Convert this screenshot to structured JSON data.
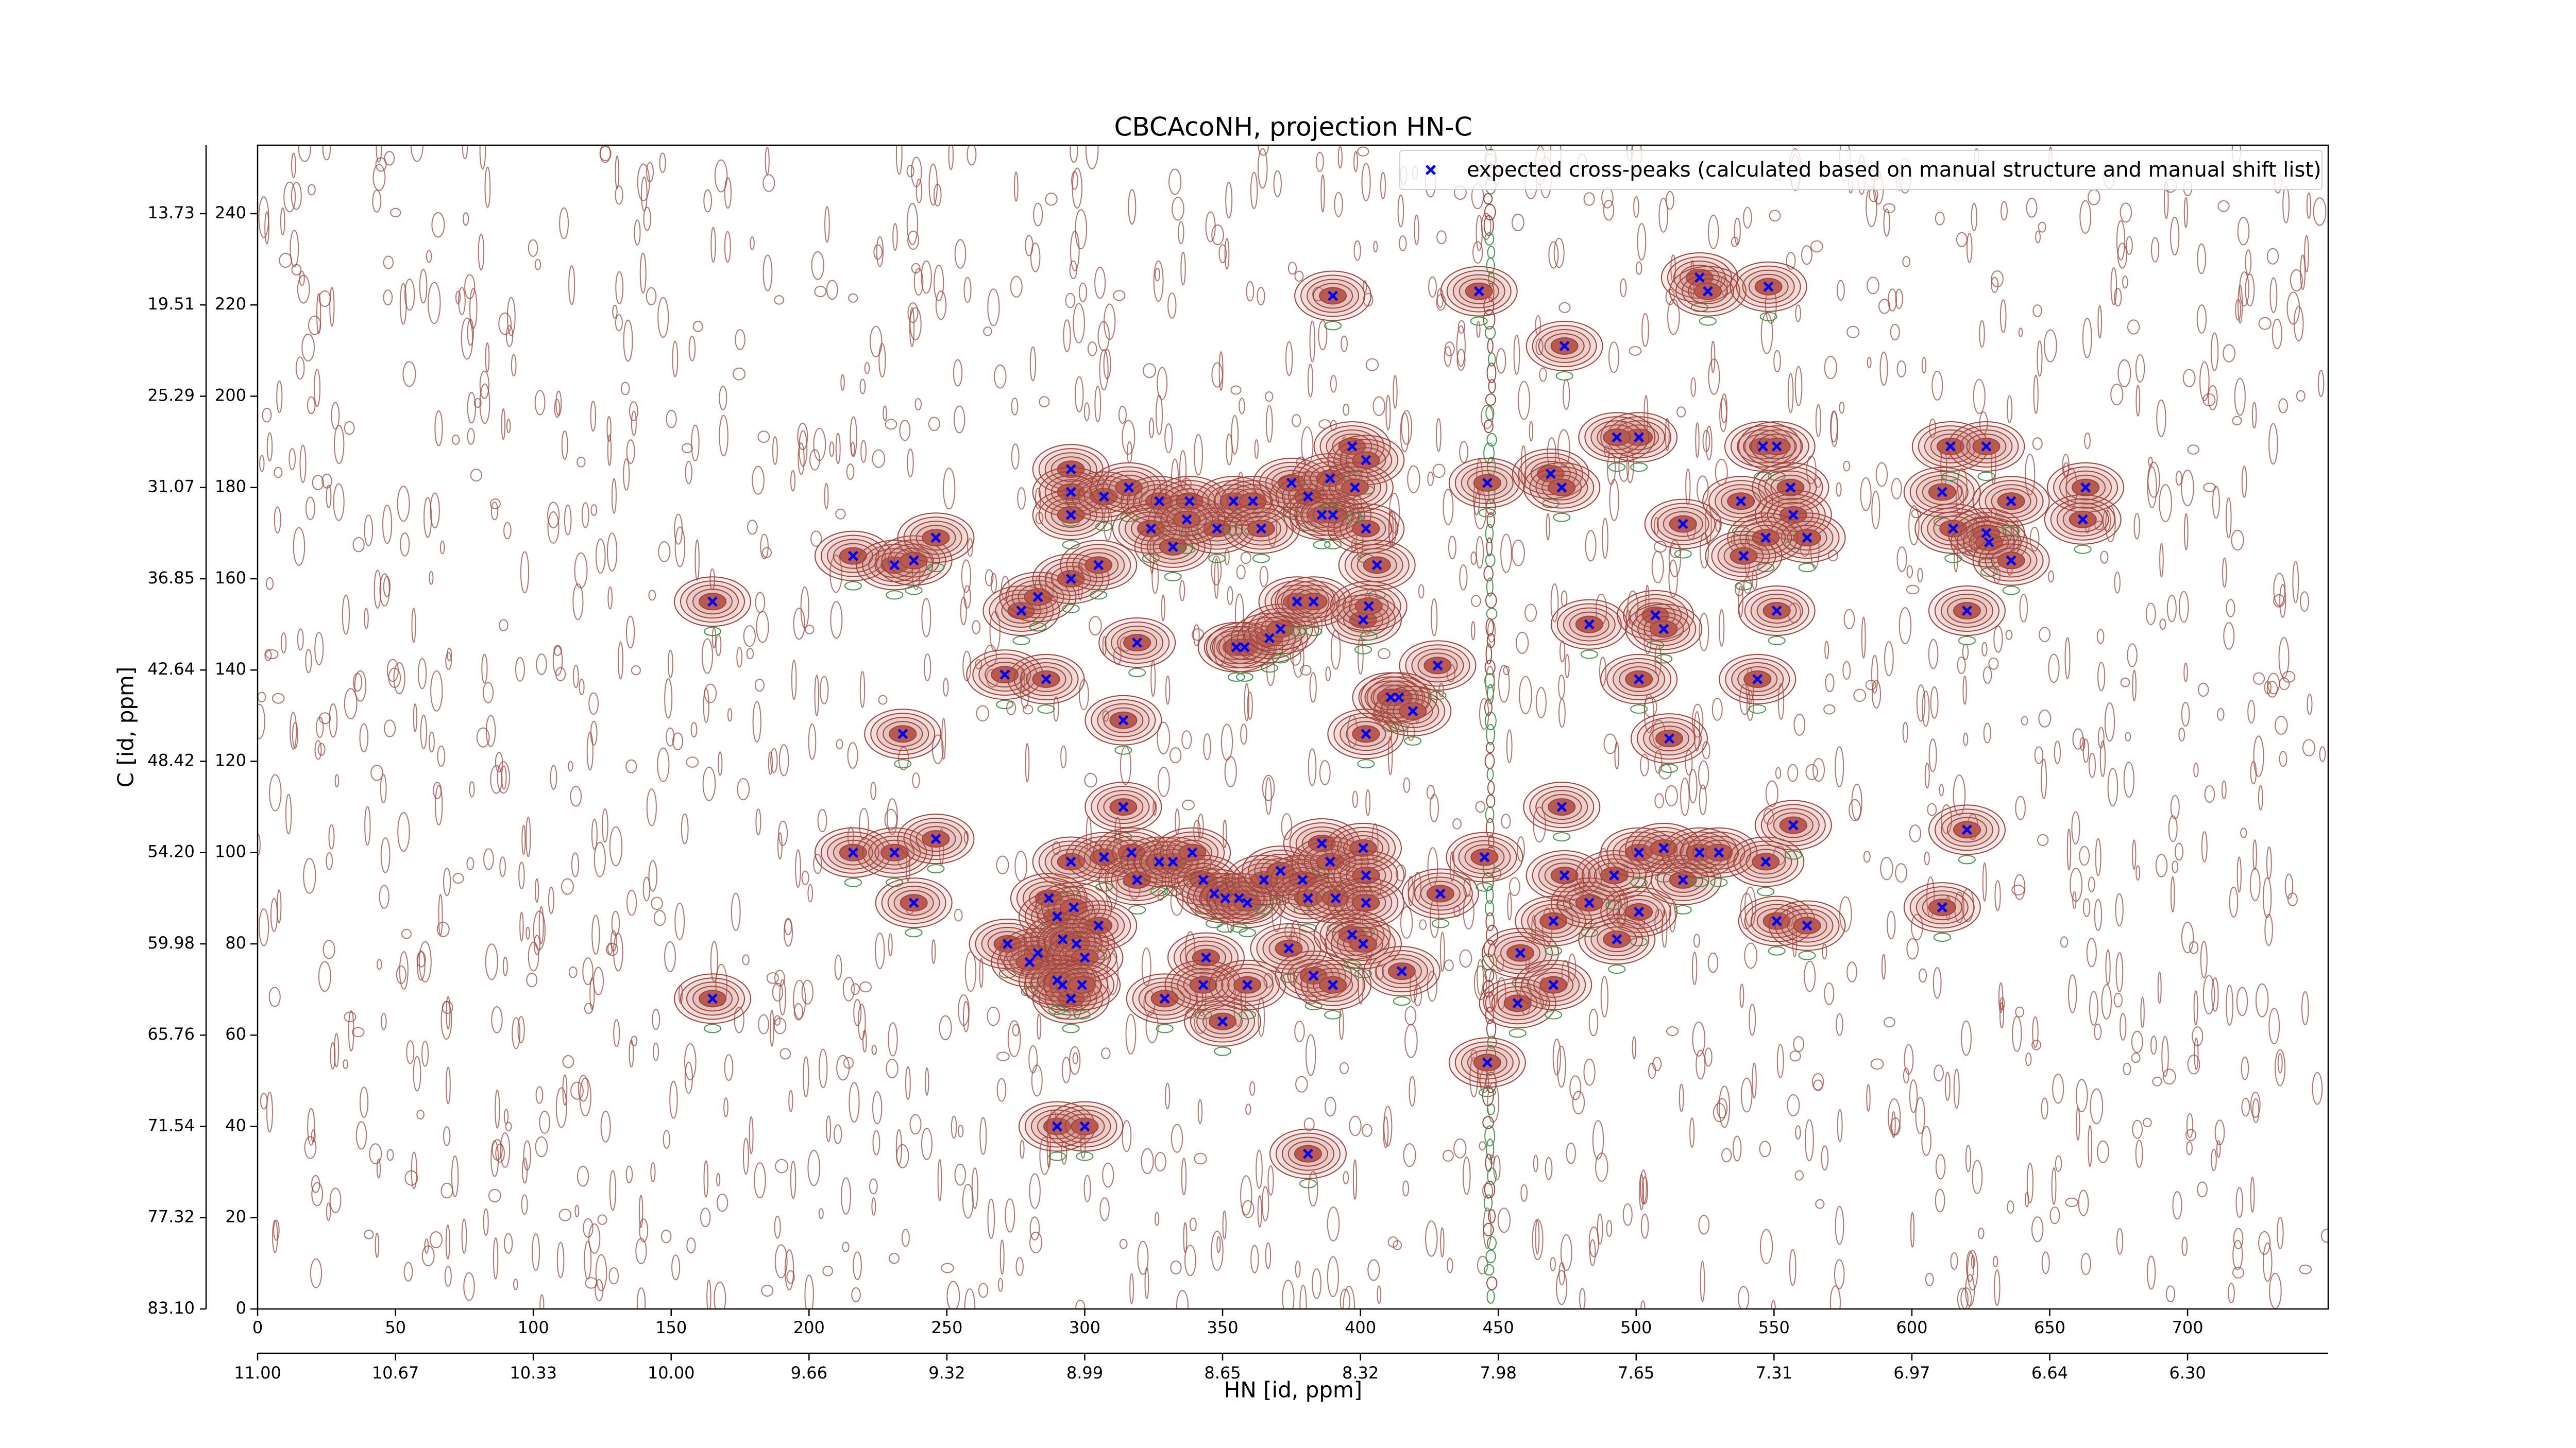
{
  "chart_data": {
    "type": "scatter",
    "title": "CBCAcoNH, projection HN-C",
    "xlabel": "HN [id, ppm]",
    "ylabel": "C [id, ppm]",
    "xlim": [
      0,
      751
    ],
    "ylim": [
      0,
      255
    ],
    "xticks": [
      0,
      50,
      100,
      150,
      200,
      250,
      300,
      350,
      400,
      450,
      500,
      550,
      600,
      650,
      700
    ],
    "yticks": [
      0,
      20,
      40,
      60,
      80,
      100,
      120,
      140,
      160,
      180,
      200,
      220,
      240
    ],
    "ppm_xticks": [
      {
        "value": 0,
        "label": "11.00"
      },
      {
        "value": 50,
        "label": "10.67"
      },
      {
        "value": 100,
        "label": "10.33"
      },
      {
        "value": 150,
        "label": "10.00"
      },
      {
        "value": 200,
        "label": "9.66"
      },
      {
        "value": 250,
        "label": "9.32"
      },
      {
        "value": 300,
        "label": "8.99"
      },
      {
        "value": 350,
        "label": "8.65"
      },
      {
        "value": 400,
        "label": "8.32"
      },
      {
        "value": 450,
        "label": "7.98"
      },
      {
        "value": 500,
        "label": "7.65"
      },
      {
        "value": 550,
        "label": "7.31"
      },
      {
        "value": 600,
        "label": "6.97"
      },
      {
        "value": 650,
        "label": "6.64"
      },
      {
        "value": 700,
        "label": "6.30"
      }
    ],
    "ppm_yticks": [
      {
        "value": 0,
        "label": "83.10"
      },
      {
        "value": 20,
        "label": "77.32"
      },
      {
        "value": 40,
        "label": "71.54"
      },
      {
        "value": 60,
        "label": "65.76"
      },
      {
        "value": 80,
        "label": "59.98"
      },
      {
        "value": 100,
        "label": "54.20"
      },
      {
        "value": 120,
        "label": "48.42"
      },
      {
        "value": 140,
        "label": "42.64"
      },
      {
        "value": 160,
        "label": "36.85"
      },
      {
        "value": 180,
        "label": "31.07"
      },
      {
        "value": 200,
        "label": "25.29"
      },
      {
        "value": 220,
        "label": "19.51"
      },
      {
        "value": 240,
        "label": "13.73"
      }
    ],
    "legend": "upper right",
    "contour_color": "#a0443a",
    "series": [
      {
        "name": "expected cross-peaks (calculated based on manual structure and manual shift list)",
        "color": "#0000ff",
        "x": [
          165,
          165,
          216,
          231,
          238,
          246,
          234,
          216,
          231,
          246,
          238,
          271,
          286,
          277,
          283,
          295,
          305,
          295,
          295,
          295,
          307,
          316,
          327,
          324,
          332,
          338,
          348,
          354,
          361,
          364,
          337,
          319,
          314,
          355,
          358,
          367,
          371,
          377,
          383,
          375,
          381,
          386,
          390,
          389,
          397,
          402,
          402,
          398,
          406,
          401,
          403,
          414,
          411,
          419,
          402,
          428,
          390,
          443,
          446,
          474,
          469,
          473,
          483,
          501,
          493,
          517,
          507,
          510,
          501,
          512,
          544,
          523,
          526,
          548,
          546,
          551,
          538,
          556,
          557,
          562,
          547,
          539,
          551,
          611,
          614,
          627,
          615,
          627,
          628,
          636,
          636,
          620,
          663,
          662,
          620,
          611,
          473,
          458,
          457,
          470,
          474,
          470,
          483,
          492,
          501,
          501,
          493,
          510,
          517,
          523,
          530,
          547,
          557,
          551,
          562,
          446,
          429,
          445,
          314,
          295,
          307,
          317,
          319,
          327,
          332,
          339,
          343,
          347,
          351,
          356,
          359,
          365,
          371,
          379,
          386,
          389,
          381,
          391,
          401,
          402,
          402,
          287,
          290,
          296,
          305,
          272,
          283,
          280,
          292,
          297,
          300,
          292,
          295,
          290,
          299,
          329,
          344,
          343,
          350,
          359,
          374,
          383,
          390,
          397,
          401,
          415,
          290,
          300,
          381
        ],
        "values": [
          155,
          68,
          165,
          163,
          164,
          169,
          126,
          100,
          100,
          103,
          89,
          139,
          138,
          153,
          156,
          160,
          163,
          184,
          179,
          174,
          178,
          180,
          177,
          171,
          167,
          177,
          171,
          177,
          177,
          171,
          173,
          146,
          129,
          145,
          145,
          147,
          149,
          155,
          155,
          181,
          178,
          174,
          174,
          182,
          189,
          186,
          171,
          180,
          163,
          151,
          154,
          134,
          134,
          131,
          126,
          141,
          222,
          223,
          181,
          211,
          183,
          180,
          150,
          191,
          191,
          172,
          152,
          149,
          138,
          125,
          138,
          226,
          223,
          224,
          189,
          189,
          177,
          180,
          174,
          169,
          169,
          165,
          153,
          179,
          189,
          189,
          171,
          170,
          168,
          177,
          164,
          153,
          180,
          173,
          105,
          88,
          110,
          78,
          67,
          71,
          95,
          85,
          89,
          95,
          100,
          87,
          81,
          101,
          94,
          100,
          100,
          98,
          106,
          85,
          84,
          54,
          91,
          99,
          110,
          98,
          99,
          100,
          94,
          98,
          98,
          100,
          94,
          91,
          90,
          90,
          89,
          94,
          96,
          94,
          102,
          98,
          90,
          90,
          101,
          95,
          89,
          90,
          86,
          88,
          84,
          80,
          78,
          76,
          81,
          80,
          77,
          71,
          68,
          72,
          71,
          68,
          77,
          71,
          63,
          71,
          79,
          73,
          71,
          82,
          80,
          74,
          40,
          40,
          34
        ]
      }
    ]
  }
}
